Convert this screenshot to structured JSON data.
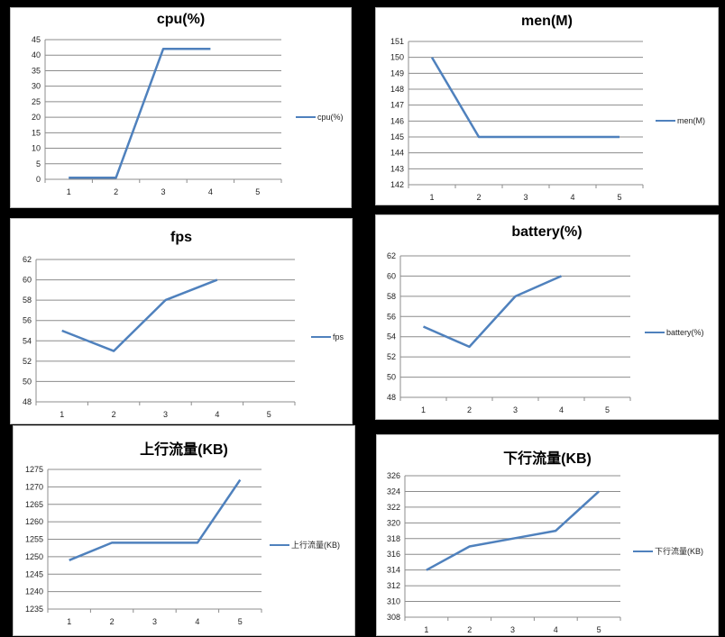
{
  "series_color": "#4f81bd",
  "chart_data": [
    {
      "type": "line",
      "title": "cpu(%)",
      "categories": [
        1,
        2,
        3,
        4,
        5
      ],
      "series": [
        {
          "name": "cpu(%)",
          "values": [
            0.5,
            0.5,
            42,
            42,
            null
          ]
        }
      ],
      "ylim": [
        0,
        45
      ],
      "yticks": [
        0,
        5,
        10,
        15,
        20,
        25,
        30,
        35,
        40,
        45
      ],
      "grid": true,
      "legend": "right"
    },
    {
      "type": "line",
      "title": "men(M)",
      "categories": [
        1,
        2,
        3,
        4,
        5
      ],
      "series": [
        {
          "name": "men(M)",
          "values": [
            150,
            145,
            145,
            145,
            145
          ]
        }
      ],
      "ylim": [
        142,
        151
      ],
      "yticks": [
        142,
        143,
        144,
        145,
        146,
        147,
        148,
        149,
        150,
        151
      ],
      "grid": true,
      "legend": "right"
    },
    {
      "type": "line",
      "title": "fps",
      "categories": [
        1,
        2,
        3,
        4,
        5
      ],
      "series": [
        {
          "name": "fps",
          "values": [
            55,
            53,
            58,
            60,
            null
          ]
        }
      ],
      "ylim": [
        48,
        62
      ],
      "yticks": [
        48,
        50,
        52,
        54,
        56,
        58,
        60,
        62
      ],
      "grid": true,
      "legend": "right"
    },
    {
      "type": "line",
      "title": "battery(%)",
      "categories": [
        1,
        2,
        3,
        4,
        5
      ],
      "series": [
        {
          "name": "battery(%)",
          "values": [
            55,
            53,
            58,
            60,
            null
          ]
        }
      ],
      "ylim": [
        48,
        62
      ],
      "yticks": [
        48,
        50,
        52,
        54,
        56,
        58,
        60,
        62
      ],
      "grid": true,
      "legend": "right"
    },
    {
      "type": "line",
      "title": "上行流量(KB)",
      "categories": [
        1,
        2,
        3,
        4,
        5
      ],
      "series": [
        {
          "name": "上行流量(KB)",
          "values": [
            1249,
            1254,
            1254,
            1254,
            1272
          ]
        }
      ],
      "ylim": [
        1235,
        1275
      ],
      "yticks": [
        1235,
        1240,
        1245,
        1250,
        1255,
        1260,
        1265,
        1270,
        1275
      ],
      "grid": true,
      "legend": "right"
    },
    {
      "type": "line",
      "title": "下行流量(KB)",
      "categories": [
        1,
        2,
        3,
        4,
        5
      ],
      "series": [
        {
          "name": "下行流量(KB)",
          "values": [
            314,
            317,
            318,
            319,
            324
          ]
        }
      ],
      "ylim": [
        308,
        326
      ],
      "yticks": [
        308,
        310,
        312,
        314,
        316,
        318,
        320,
        322,
        324,
        326
      ],
      "grid": true,
      "legend": "right"
    }
  ]
}
